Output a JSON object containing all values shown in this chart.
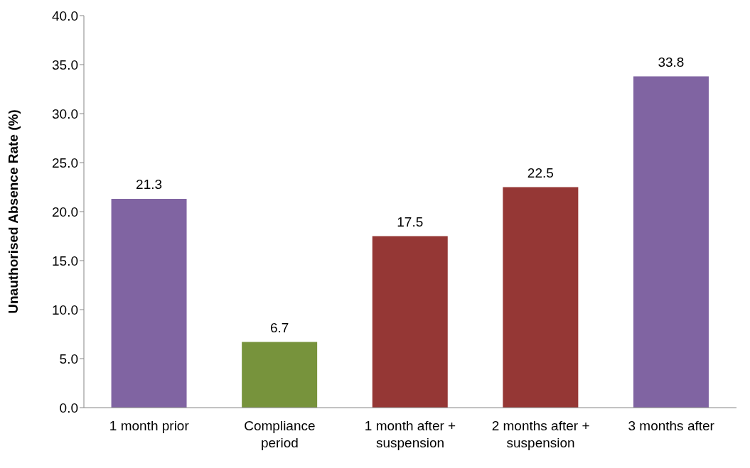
{
  "chart_data": {
    "type": "bar",
    "ylabel": "Unauthorised Absence Rate (%)",
    "categories": [
      "1 month prior",
      "Compliance period",
      "1 month after + suspension",
      "2 months after + suspension",
      "3 months after"
    ],
    "values": [
      21.3,
      6.7,
      17.5,
      22.5,
      33.8
    ],
    "colors": [
      "#8064a2",
      "#77933c",
      "#953735",
      "#953735",
      "#8064a2"
    ],
    "ylim": [
      0,
      40
    ],
    "yticks": [
      {
        "value": 0,
        "label": "0.0"
      },
      {
        "value": 5,
        "label": "5.0"
      },
      {
        "value": 10,
        "label": "10.0"
      },
      {
        "value": 15,
        "label": "15.0"
      },
      {
        "value": 20,
        "label": "20.0"
      },
      {
        "value": 25,
        "label": "25.0"
      },
      {
        "value": 30,
        "label": "30.0"
      },
      {
        "value": 35,
        "label": "35.0"
      },
      {
        "value": 40,
        "label": "40.0"
      }
    ],
    "data_labels": true,
    "grid": false
  }
}
